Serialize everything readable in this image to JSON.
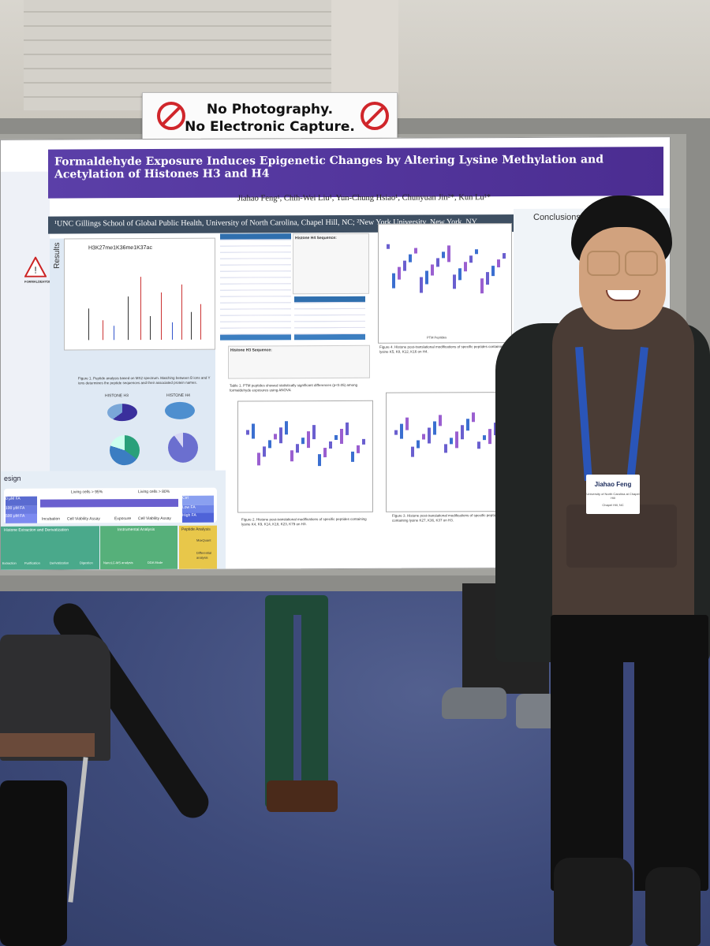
{
  "sign": {
    "line1": "No Photography.",
    "line2": "No Electronic Capture."
  },
  "poster": {
    "title": "Formaldehyde Exposure Induces Epigenetic Changes by Altering Lysine Methylation and Acetylation of Histones H3 and H4",
    "authors": "Jiahao Feng¹, Chih-Wei Liu¹, Yun-Chung Hsiao¹, Chunyuan Jin²*, Kun Lu¹*",
    "affiliation": "¹UNC Gillings School of Global Public Health, University of North Carolina, Chapel Hill, NC; ²New York University, New York, NY",
    "results_label": "Results",
    "ms_plot_title": "H3K27me1K36me1K37ac",
    "figure1_caption": "Figure 1. Peptide analysis based on MS2 spectrum. Matching between B ions and Y ions determines the peptide sequences and their associated protein names.",
    "table1_caption": "Table 1. PTM peptides showed statistically significant differences (p<0.05) among formaldehyde exposures using ANOVA",
    "histone_h4_seq_label": "Histone H4 Sequence:",
    "histone_h3_seq_label": "Histone H3 Sequence:",
    "histone_h3_label": "HISTONE H3",
    "histone_h4_label": "HISTONE H4",
    "figure2_caption": "Figure 2. Histone post-translational modifications of specific peptides containing lysine K4, K9, K14, K18, K23, K79 on H3.",
    "figure3_caption": "Figure 3. Histone post-translational modifications of specific peptides containing lysine K27, K36, K37 on H3.",
    "figure4_caption": "Figure 4. Histone post-translational modifications of specific peptides containing lysine K5, K8, K12, K16 on H4.",
    "ptm_label": "PTM Peptides",
    "conclusions_title": "Conclusions",
    "design_label": "esign",
    "flow_living1": "Living cells > 95%",
    "flow_living2": "Living cells > 80%",
    "flow_dose0": "0 μM FA",
    "flow_dose100": "100 μM FA",
    "flow_dose500": "500 μM FA",
    "flow_ctrl": "Ctrl",
    "flow_low": "Low FA",
    "flow_high": "High FA",
    "flow_incubation": "Incubation",
    "flow_viability": "Cell Viability Assay",
    "flow_exposure": "Exposure",
    "flow_viability2": "Cell Viability Assay",
    "extraction_label": "Histone Extraction and Derivatization",
    "instrumental_label": "Instrumental Analysis",
    "peptide_label": "Peptide Analysis",
    "formaldehyde_label": "FORMALDEHYDE",
    "extraction_step1": "Extraction",
    "extraction_step2": "Purification",
    "extraction_step3": "Derivatization",
    "extraction_step4": "Digestion",
    "instrument_step1": "NanoLC-MS analysis",
    "instrument_step2": "DDA Mode",
    "peptide_step1": "MaxQuant",
    "peptide_step2": "Differential analysis",
    "legend_ctrl": "Ctrl",
    "legend_low": "Low_FA",
    "legend_high": "High_FA"
  },
  "badge": {
    "name": "Jiahao Feng",
    "org": "University of North Carolina at Chapel Hill",
    "city": "Chapel Hill, NC"
  },
  "colors": {
    "title_bar": "#5b3fa8",
    "affiliation_bar": "#3e4f62",
    "carpet": "#3d4a7a",
    "lanyard": "#2a55b8",
    "sign_icon": "#d0262b"
  }
}
